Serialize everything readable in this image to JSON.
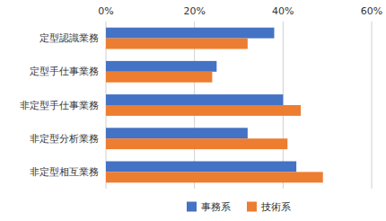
{
  "chart_data": {
    "type": "bar",
    "orientation": "horizontal",
    "categories": [
      "非定型相互業務",
      "非定型分析業務",
      "非定型手仕事業務",
      "定型手仕事業務",
      "定型認識業務"
    ],
    "series": [
      {
        "name": "事務系",
        "color": "#4472C4",
        "values": [
          43,
          32,
          40,
          25,
          38
        ]
      },
      {
        "name": "技術系",
        "color": "#ED7D31",
        "values": [
          49,
          41,
          44,
          24,
          32
        ]
      }
    ],
    "xlim": [
      0,
      60
    ],
    "xticks": [
      {
        "value": 0,
        "label": "0%"
      },
      {
        "value": 20,
        "label": "20%"
      },
      {
        "value": 40,
        "label": "40%"
      },
      {
        "value": 60,
        "label": "60%"
      }
    ],
    "grid": true,
    "legend": "bottom"
  }
}
